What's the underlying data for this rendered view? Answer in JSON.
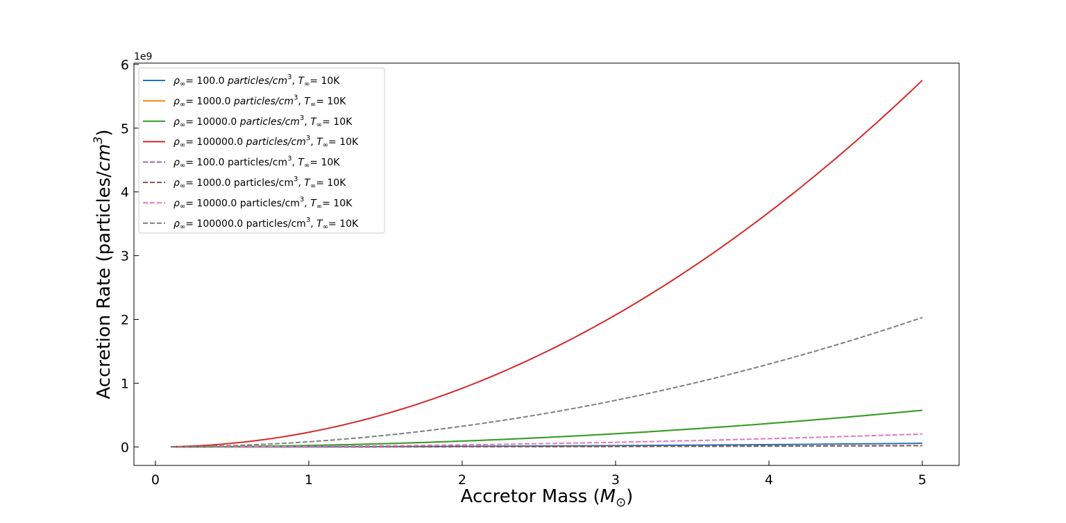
{
  "chart_data": {
    "type": "line",
    "xlabel": {
      "prefix": "Accretor Mass (",
      "symbol": "M",
      "subscript": "⊙",
      "suffix": ")"
    },
    "ylabel": {
      "prefix": "Accretion Rate (particles/",
      "var": "cm",
      "sup": "3",
      "suffix": ")"
    },
    "y_offset_label": "1e9",
    "x_ticks": [
      0,
      1,
      2,
      3,
      4,
      5
    ],
    "y_ticks": [
      0,
      1,
      2,
      3,
      4,
      5,
      6
    ],
    "xlim": [
      -0.14,
      5.24
    ],
    "ylim": [
      -0.29,
      6.02
    ],
    "y_scale_note": "y values in units of 1e9",
    "grid": false,
    "legend_position": "upper-left",
    "series": [
      {
        "name": {
          "rho": "ρ",
          "rho_sub": "∞",
          "eq": "= ",
          "value": "100.0",
          "unit": "particles/cm",
          "unit_sup": "3",
          "sep": ", ",
          "T": "T",
          "T_sub": "∞",
          "temp": "= 10K"
        },
        "unit_italic": true,
        "color": "#1f77b4",
        "dash": "solid",
        "x": [
          0.1,
          1,
          2,
          3,
          4,
          5
        ],
        "y": [
          0.0,
          0.0023,
          0.0092,
          0.0207,
          0.0368,
          0.0575
        ]
      },
      {
        "name": {
          "rho": "ρ",
          "rho_sub": "∞",
          "eq": "= ",
          "value": "1000.0",
          "unit": "particles/cm",
          "unit_sup": "3",
          "sep": ", ",
          "T": "T",
          "T_sub": "∞",
          "temp": "= 10K"
        },
        "unit_italic": true,
        "color": "#ff7f0e",
        "dash": "solid",
        "x": [
          0.1,
          1,
          2,
          3,
          4,
          5
        ],
        "y": [
          0.0,
          0.023,
          0.092,
          0.207,
          0.368,
          0.575
        ]
      },
      {
        "name": {
          "rho": "ρ",
          "rho_sub": "∞",
          "eq": "= ",
          "value": "10000.0",
          "unit": "particles/cm",
          "unit_sup": "3",
          "sep": ", ",
          "T": "T",
          "T_sub": "∞",
          "temp": "= 10K"
        },
        "unit_italic": true,
        "color": "#2ca02c",
        "dash": "solid",
        "x": [
          0.1,
          1,
          2,
          3,
          4,
          5
        ],
        "y": [
          0.0,
          0.023,
          0.092,
          0.207,
          0.368,
          0.575
        ]
      },
      {
        "name": {
          "rho": "ρ",
          "rho_sub": "∞",
          "eq": "= ",
          "value": "100000.0",
          "unit": "particles/cm",
          "unit_sup": "3",
          "sep": ", ",
          "T": "T",
          "T_sub": "∞",
          "temp": "= 10K"
        },
        "unit_italic": true,
        "color": "#d62728",
        "dash": "solid",
        "x": [
          0.1,
          1,
          2,
          3,
          4,
          5
        ],
        "y": [
          0.0,
          0.23,
          0.92,
          2.07,
          3.68,
          5.75
        ]
      },
      {
        "name": {
          "rho": "ρ",
          "rho_sub": "∞",
          "eq": "= ",
          "value": "100.0",
          "unit": "particles/cm",
          "unit_sup": "3",
          "sep": ", ",
          "T": "T",
          "T_sub": "∞",
          "temp": "= 10K"
        },
        "unit_italic": false,
        "color": "#9467bd",
        "dash": "dashed",
        "x": [
          0.1,
          1,
          2,
          3,
          4,
          5
        ],
        "y": [
          0.0,
          0.0008,
          0.0032,
          0.0073,
          0.013,
          0.0203
        ]
      },
      {
        "name": {
          "rho": "ρ",
          "rho_sub": "∞",
          "eq": "= ",
          "value": "1000.0",
          "unit": "particles/cm",
          "unit_sup": "3",
          "sep": ", ",
          "T": "T",
          "T_sub": "∞",
          "temp": "= 10K"
        },
        "unit_italic": false,
        "color": "#8c564b",
        "dash": "dashed",
        "x": [
          0.1,
          1,
          2,
          3,
          4,
          5
        ],
        "y": [
          0.0,
          0.0008,
          0.0032,
          0.0073,
          0.013,
          0.0203
        ]
      },
      {
        "name": {
          "rho": "ρ",
          "rho_sub": "∞",
          "eq": "= ",
          "value": "10000.0",
          "unit": "particles/cm",
          "unit_sup": "3",
          "sep": ", ",
          "T": "T",
          "T_sub": "∞",
          "temp": "= 10K"
        },
        "unit_italic": false,
        "color": "#e377c2",
        "dash": "dashed",
        "x": [
          0.1,
          1,
          2,
          3,
          4,
          5
        ],
        "y": [
          0.0,
          0.0081,
          0.0325,
          0.0731,
          0.13,
          0.203
        ]
      },
      {
        "name": {
          "rho": "ρ",
          "rho_sub": "∞",
          "eq": "= ",
          "value": "100000.0",
          "unit": "particles/cm",
          "unit_sup": "3",
          "sep": ", ",
          "T": "T",
          "T_sub": "∞",
          "temp": "= 10K"
        },
        "unit_italic": false,
        "color": "#7f7f7f",
        "dash": "dashed",
        "x": [
          0.1,
          1,
          2,
          3,
          4,
          5
        ],
        "y": [
          0.0,
          0.081,
          0.325,
          0.731,
          1.3,
          2.03
        ]
      }
    ]
  }
}
